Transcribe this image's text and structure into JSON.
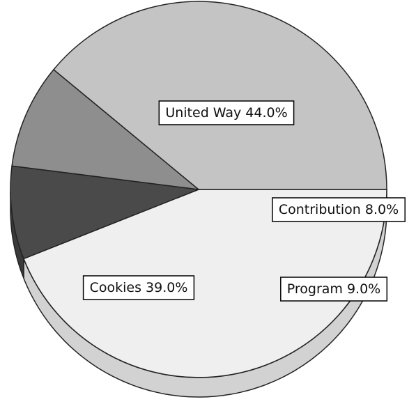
{
  "chart_data": {
    "type": "pie",
    "title": "",
    "slices": [
      {
        "label": "United Way",
        "value": 44.0,
        "display": "United Way 44.0%",
        "color": "#efefef",
        "side_color": "#d2d2d2"
      },
      {
        "label": "Contribution",
        "value": 8.0,
        "display": "Contribution 8.0%",
        "color": "#4a4a4a",
        "side_color": "#3a3a3a"
      },
      {
        "label": "Program",
        "value": 9.0,
        "display": "Program 9.0%",
        "color": "#8e8e8e",
        "side_color": "#7a7a7a"
      },
      {
        "label": "Cookies",
        "value": 39.0,
        "display": "Cookies 39.0%",
        "color": "#c4c4c4",
        "side_color": "#b0b0b0"
      }
    ],
    "style": "3d-tilted",
    "legend": "none"
  }
}
